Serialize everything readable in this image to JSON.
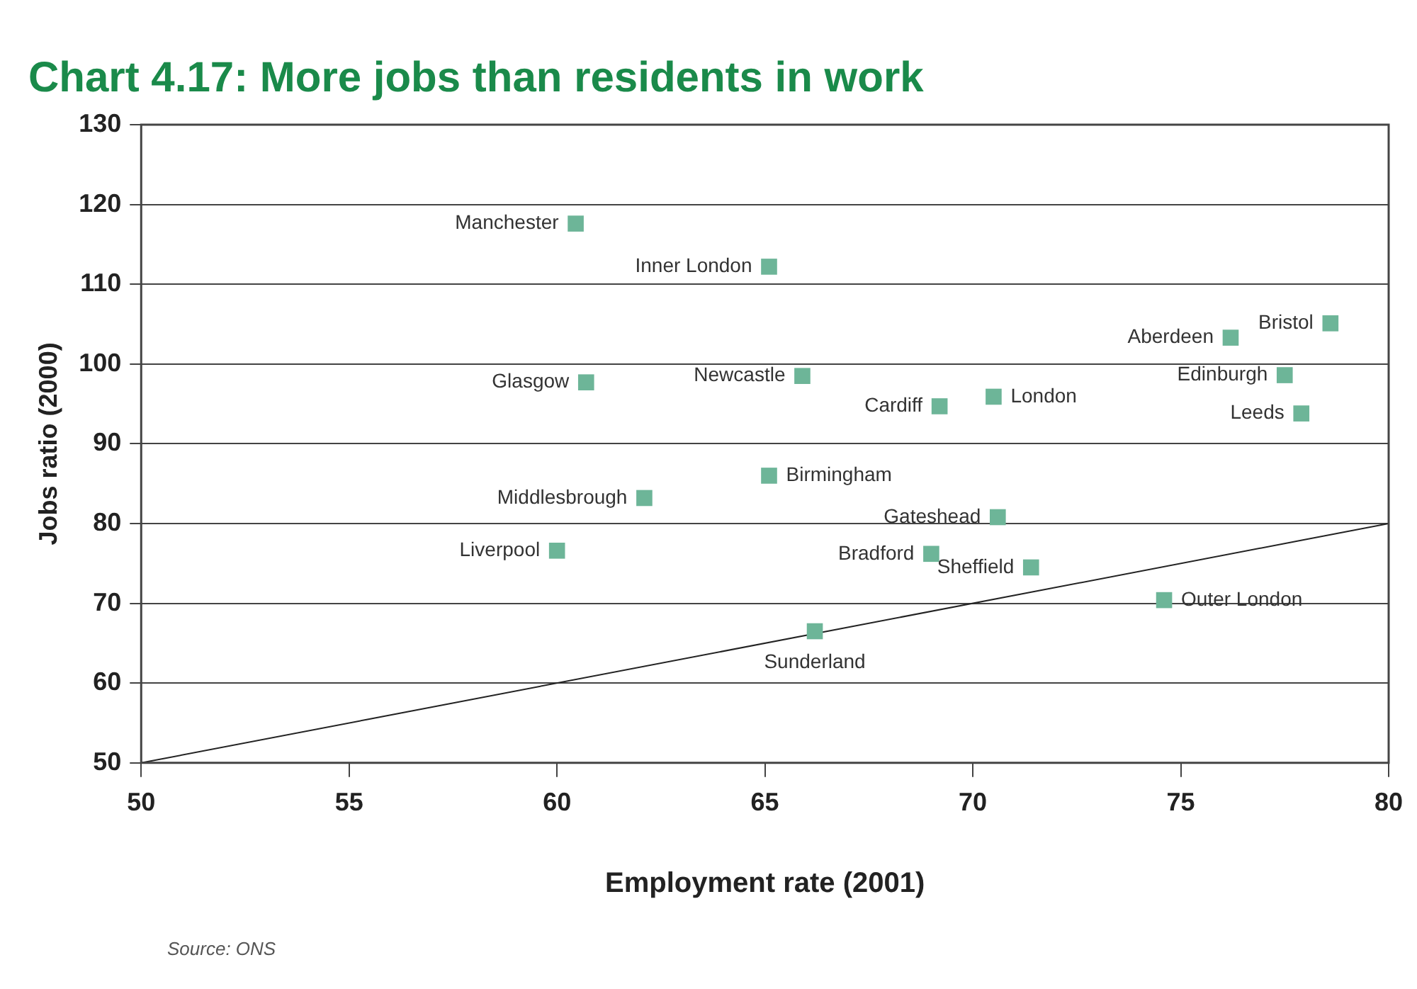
{
  "chart_data": {
    "type": "scatter",
    "title": "Chart 4.17: More jobs than residents in work",
    "xlabel": "Employment rate (2001)",
    "ylabel": "Jobs ratio (2000)",
    "xlim": [
      50,
      80
    ],
    "xticks": [
      50,
      55,
      60,
      65,
      70,
      75,
      80
    ],
    "ylim": [
      50,
      130
    ],
    "yticks": [
      50,
      60,
      70,
      80,
      90,
      100,
      110,
      120,
      130
    ],
    "grid": "y",
    "legend": false,
    "marker": "square",
    "series": [
      {
        "type": "line",
        "color": "#222222",
        "x": [
          50,
          80
        ],
        "values": [
          50,
          80
        ],
        "marker": "none"
      },
      {
        "color": "#6db598",
        "x": [
          60.45,
          65.1,
          78.6,
          76.2,
          60.7,
          65.9,
          69.2,
          70.5,
          77.5,
          77.9,
          65.1,
          62.1,
          70.6,
          60.0,
          69.0,
          71.4,
          74.6,
          66.2
        ],
        "values": [
          117.6,
          112.2,
          105.1,
          103.3,
          97.7,
          98.5,
          94.7,
          95.9,
          98.6,
          93.8,
          86.0,
          83.2,
          80.8,
          76.6,
          76.2,
          74.5,
          70.4,
          66.5
        ]
      }
    ],
    "annotations": [
      {
        "text": "Manchester",
        "x": 60.45,
        "y": 117.6
      },
      {
        "text": "Inner London",
        "x": 65.1,
        "y": 112.2
      },
      {
        "text": "Bristol",
        "x": 78.6,
        "y": 105.1
      },
      {
        "text": "Aberdeen",
        "x": 76.2,
        "y": 103.3
      },
      {
        "text": "Glasgow",
        "x": 60.7,
        "y": 97.7
      },
      {
        "text": "Newcastle",
        "x": 65.9,
        "y": 98.5
      },
      {
        "text": "Cardiff",
        "x": 69.2,
        "y": 94.7
      },
      {
        "text": "London",
        "x": 70.5,
        "y": 95.9
      },
      {
        "text": "Edinburgh",
        "x": 77.5,
        "y": 98.6
      },
      {
        "text": "Leeds",
        "x": 77.9,
        "y": 93.8
      },
      {
        "text": "Birmingham",
        "x": 65.1,
        "y": 86.0
      },
      {
        "text": "Middlesbrough",
        "x": 62.1,
        "y": 83.2
      },
      {
        "text": "Gateshead",
        "x": 70.6,
        "y": 80.8
      },
      {
        "text": "Liverpool",
        "x": 60.0,
        "y": 76.6
      },
      {
        "text": "Bradford",
        "x": 69.0,
        "y": 76.2
      },
      {
        "text": "Sheffield",
        "x": 71.4,
        "y": 74.5
      },
      {
        "text": "Outer London",
        "x": 74.6,
        "y": 70.4
      },
      {
        "text": "Sunderland",
        "x": 66.2,
        "y": 66.5
      },
      "Source: ONS"
    ]
  }
}
